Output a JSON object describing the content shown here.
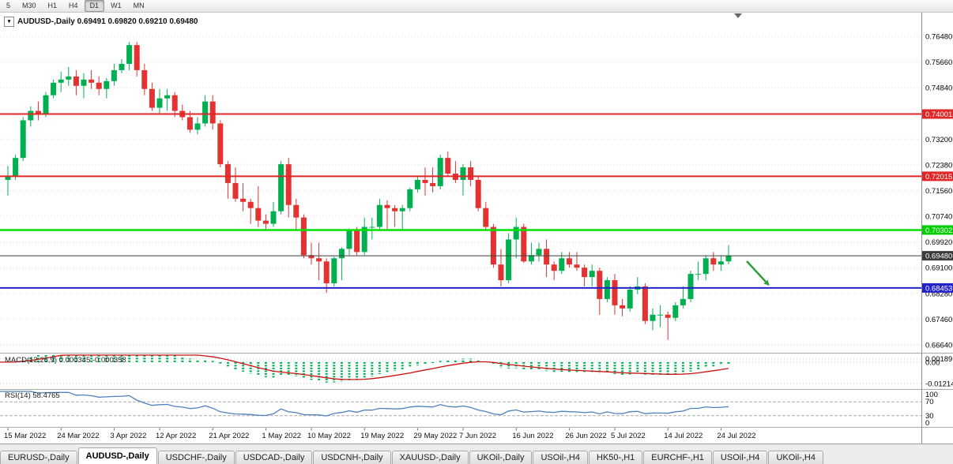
{
  "toolbar": {
    "timeframes": [
      {
        "label": "5",
        "active": false
      },
      {
        "label": "M30",
        "active": false
      },
      {
        "label": "H1",
        "active": false
      },
      {
        "label": "H4",
        "active": false
      },
      {
        "label": "D1",
        "active": true
      },
      {
        "label": "W1",
        "active": false
      },
      {
        "label": "MN",
        "active": false
      }
    ]
  },
  "chart": {
    "header": "AUDUSD-,Daily 0.69491 0.69820 0.69210 0.69480",
    "menu_icon": "▾"
  },
  "chart_data": {
    "type": "candlestick",
    "symbol": "AUDUSD-",
    "timeframe": "Daily",
    "ohlc": {
      "open": "0.69491",
      "high": "0.69820",
      "low": "0.69210",
      "close": "0.69480"
    },
    "colors": {
      "bull": "#00b050",
      "bear": "#e23232",
      "background": "#ffffff",
      "grid": "#dadada"
    },
    "price_scale": {
      "ticks": [
        {
          "label": "0.76480",
          "show": true
        },
        {
          "label": "0.75660",
          "show": true
        },
        {
          "label": "0.74840",
          "show": true
        },
        {
          "label": "0.74020",
          "show": false
        },
        {
          "label": "0.73200",
          "show": true
        },
        {
          "label": "0.72380",
          "show": true
        },
        {
          "label": "0.71560",
          "show": true
        },
        {
          "label": "0.70740",
          "show": true
        },
        {
          "label": "0.69920",
          "show": true
        },
        {
          "label": "0.69100",
          "show": true
        },
        {
          "label": "0.68280",
          "show": true
        },
        {
          "label": "0.67460",
          "show": true
        },
        {
          "label": "0.66640",
          "show": true
        }
      ]
    },
    "hlines": [
      {
        "price": 0.74001,
        "label": "0.74001",
        "color": "#e02626",
        "badge": "#e02626",
        "text_color": "#ffffff",
        "width": 2
      },
      {
        "price": 0.72015,
        "label": "0.72015",
        "color": "#e02626",
        "badge": "#e02626",
        "text_color": "#ffffff",
        "width": 2
      },
      {
        "price": 0.70302,
        "label": "0.70302",
        "color": "#00e100",
        "badge": "#00ce00",
        "text_color": "#ffffff",
        "width": 2.5
      },
      {
        "price": 0.6948,
        "label": "0.69480",
        "color": "#3c3c3c",
        "badge": "#3c3c3c",
        "text_color": "#ffffff",
        "width": 1
      },
      {
        "price": 0.68453,
        "label": "0.68453",
        "color": "#2222cc",
        "badge": "#2222cc",
        "text_color": "#ffffff",
        "width": 2
      }
    ],
    "candles": [
      [
        0.719,
        0.7235,
        0.714,
        0.72
      ],
      [
        0.72,
        0.727,
        0.719,
        0.726
      ],
      [
        0.726,
        0.739,
        0.725,
        0.738
      ],
      [
        0.738,
        0.7425,
        0.736,
        0.741
      ],
      [
        0.741,
        0.744,
        0.738,
        0.74
      ],
      [
        0.74,
        0.747,
        0.739,
        0.746
      ],
      [
        0.746,
        0.751,
        0.745,
        0.75
      ],
      [
        0.75,
        0.7535,
        0.747,
        0.751
      ],
      [
        0.751,
        0.755,
        0.749,
        0.752
      ],
      [
        0.752,
        0.754,
        0.746,
        0.749
      ],
      [
        0.749,
        0.753,
        0.745,
        0.751
      ],
      [
        0.751,
        0.754,
        0.748,
        0.75
      ],
      [
        0.75,
        0.752,
        0.746,
        0.748
      ],
      [
        0.748,
        0.7515,
        0.745,
        0.7505
      ],
      [
        0.7505,
        0.756,
        0.749,
        0.754
      ],
      [
        0.754,
        0.7575,
        0.753,
        0.756
      ],
      [
        0.756,
        0.763,
        0.754,
        0.762
      ],
      [
        0.762,
        0.763,
        0.752,
        0.754
      ],
      [
        0.754,
        0.756,
        0.746,
        0.748
      ],
      [
        0.748,
        0.75,
        0.741,
        0.742
      ],
      [
        0.742,
        0.748,
        0.74,
        0.745
      ],
      [
        0.745,
        0.748,
        0.741,
        0.746
      ],
      [
        0.746,
        0.747,
        0.739,
        0.741
      ],
      [
        0.741,
        0.743,
        0.738,
        0.739
      ],
      [
        0.739,
        0.741,
        0.734,
        0.735
      ],
      [
        0.735,
        0.739,
        0.7335,
        0.737
      ],
      [
        0.737,
        0.746,
        0.736,
        0.744
      ],
      [
        0.744,
        0.746,
        0.735,
        0.737
      ],
      [
        0.737,
        0.738,
        0.723,
        0.724
      ],
      [
        0.724,
        0.725,
        0.713,
        0.718
      ],
      [
        0.718,
        0.723,
        0.712,
        0.713
      ],
      [
        0.713,
        0.718,
        0.709,
        0.712
      ],
      [
        0.712,
        0.713,
        0.705,
        0.71
      ],
      [
        0.71,
        0.717,
        0.704,
        0.706
      ],
      [
        0.706,
        0.708,
        0.703,
        0.705
      ],
      [
        0.705,
        0.712,
        0.704,
        0.709
      ],
      [
        0.709,
        0.725,
        0.708,
        0.724
      ],
      [
        0.724,
        0.726,
        0.707,
        0.711
      ],
      [
        0.711,
        0.713,
        0.703,
        0.707
      ],
      [
        0.707,
        0.708,
        0.694,
        0.695
      ],
      [
        0.695,
        0.699,
        0.692,
        0.694
      ],
      [
        0.694,
        0.699,
        0.687,
        0.693
      ],
      [
        0.693,
        0.694,
        0.683,
        0.686
      ],
      [
        0.686,
        0.6945,
        0.685,
        0.694
      ],
      [
        0.694,
        0.6975,
        0.687,
        0.697
      ],
      [
        0.697,
        0.7035,
        0.695,
        0.703
      ],
      [
        0.703,
        0.704,
        0.695,
        0.696
      ],
      [
        0.696,
        0.707,
        0.695,
        0.704
      ],
      [
        0.704,
        0.707,
        0.7,
        0.704
      ],
      [
        0.704,
        0.713,
        0.703,
        0.711
      ],
      [
        0.711,
        0.7125,
        0.703,
        0.71
      ],
      [
        0.71,
        0.711,
        0.704,
        0.709
      ],
      [
        0.709,
        0.711,
        0.703,
        0.71
      ],
      [
        0.71,
        0.7165,
        0.709,
        0.716
      ],
      [
        0.716,
        0.72,
        0.715,
        0.719
      ],
      [
        0.719,
        0.723,
        0.714,
        0.718
      ],
      [
        0.718,
        0.723,
        0.715,
        0.717
      ],
      [
        0.717,
        0.727,
        0.716,
        0.726
      ],
      [
        0.726,
        0.728,
        0.72,
        0.721
      ],
      [
        0.721,
        0.725,
        0.718,
        0.719
      ],
      [
        0.719,
        0.724,
        0.714,
        0.723
      ],
      [
        0.723,
        0.725,
        0.717,
        0.719
      ],
      [
        0.719,
        0.72,
        0.709,
        0.71
      ],
      [
        0.71,
        0.712,
        0.703,
        0.704
      ],
      [
        0.704,
        0.705,
        0.691,
        0.692
      ],
      [
        0.692,
        0.697,
        0.685,
        0.687
      ],
      [
        0.687,
        0.702,
        0.686,
        0.7
      ],
      [
        0.7,
        0.707,
        0.694,
        0.704
      ],
      [
        0.704,
        0.705,
        0.6925,
        0.693
      ],
      [
        0.693,
        0.699,
        0.692,
        0.695
      ],
      [
        0.695,
        0.699,
        0.693,
        0.697
      ],
      [
        0.697,
        0.7,
        0.688,
        0.692
      ],
      [
        0.692,
        0.693,
        0.687,
        0.69
      ],
      [
        0.69,
        0.696,
        0.689,
        0.694
      ],
      [
        0.694,
        0.696,
        0.691,
        0.692
      ],
      [
        0.692,
        0.696,
        0.69,
        0.691
      ],
      [
        0.691,
        0.692,
        0.685,
        0.688
      ],
      [
        0.688,
        0.692,
        0.685,
        0.69
      ],
      [
        0.69,
        0.691,
        0.676,
        0.681
      ],
      [
        0.681,
        0.688,
        0.68,
        0.687
      ],
      [
        0.687,
        0.689,
        0.676,
        0.679
      ],
      [
        0.679,
        0.681,
        0.6755,
        0.678
      ],
      [
        0.678,
        0.685,
        0.677,
        0.684
      ],
      [
        0.684,
        0.688,
        0.6825,
        0.685
      ],
      [
        0.685,
        0.686,
        0.673,
        0.674
      ],
      [
        0.674,
        0.678,
        0.671,
        0.676
      ],
      [
        0.676,
        0.679,
        0.672,
        0.676
      ],
      [
        0.676,
        0.677,
        0.668,
        0.675
      ],
      [
        0.675,
        0.68,
        0.674,
        0.679
      ],
      [
        0.679,
        0.685,
        0.678,
        0.681
      ],
      [
        0.681,
        0.69,
        0.68,
        0.689
      ],
      [
        0.689,
        0.693,
        0.687,
        0.689
      ],
      [
        0.689,
        0.695,
        0.687,
        0.694
      ],
      [
        0.694,
        0.696,
        0.69,
        0.692
      ],
      [
        0.692,
        0.695,
        0.69,
        0.693
      ],
      [
        0.693,
        0.6982,
        0.6921,
        0.6948
      ]
    ],
    "time_axis": [
      {
        "label": "15 Mar 2022",
        "index": 0
      },
      {
        "label": "24 Mar 2022",
        "index": 7
      },
      {
        "label": "3 Apr 2022",
        "index": 14
      },
      {
        "label": "12 Apr 2022",
        "index": 20
      },
      {
        "label": "21 Apr 2022",
        "index": 27
      },
      {
        "label": "1 May 2022",
        "index": 34
      },
      {
        "label": "10 May 2022",
        "index": 40
      },
      {
        "label": "19 May 2022",
        "index": 47
      },
      {
        "label": "29 May 2022",
        "index": 54
      },
      {
        "label": "7 Jun 2022",
        "index": 60
      },
      {
        "label": "16 Jun 2022",
        "index": 67
      },
      {
        "label": "26 Jun 2022",
        "index": 74
      },
      {
        "label": "5 Jul 2022",
        "index": 80
      },
      {
        "label": "14 Jul 2022",
        "index": 87
      },
      {
        "label": "24 Jul 2022",
        "index": 94
      }
    ],
    "indicators": {
      "macd": {
        "label_text": "MACD(12,26,9) 0.000345 -0.000358",
        "params": "12,26,9",
        "histogram_color": "#00b050",
        "signal_color": "#cc1111",
        "axis": [
          {
            "label": "0.00189",
            "value": 0.00189
          },
          {
            "label": "0.00",
            "value": 0
          },
          {
            "label": "-0.01214",
            "value": -0.01214
          }
        ]
      },
      "rsi": {
        "label_text": "RSI(14) 58.4765",
        "period": 14,
        "value": "58.4765",
        "line_color": "#4f81bd",
        "levels": [
          70,
          30
        ],
        "axis": [
          {
            "label": "100",
            "value": 100
          },
          {
            "label": "70",
            "value": 70
          },
          {
            "label": "30",
            "value": 30
          },
          {
            "label": "0",
            "value": 0
          }
        ]
      }
    },
    "annotation_arrow": {
      "color": "#2f9e41",
      "direction": "down-right"
    }
  },
  "tabs": [
    {
      "label": "EURUSD-,Daily",
      "active": false
    },
    {
      "label": "AUDUSD-,Daily",
      "active": true
    },
    {
      "label": "USDCHF-,Daily",
      "active": false
    },
    {
      "label": "USDCAD-,Daily",
      "active": false
    },
    {
      "label": "USDCNH-,Daily",
      "active": false
    },
    {
      "label": "XAUUSD-,Daily",
      "active": false
    },
    {
      "label": "UKOil-,Daily",
      "active": false
    },
    {
      "label": "USOil-,H4",
      "active": false
    },
    {
      "label": "HK50-,H1",
      "active": false
    },
    {
      "label": "EURCHF-,H1",
      "active": false
    },
    {
      "label": "USOil-,H4",
      "active": false
    },
    {
      "label": "UKOil-,H4",
      "active": false
    }
  ]
}
